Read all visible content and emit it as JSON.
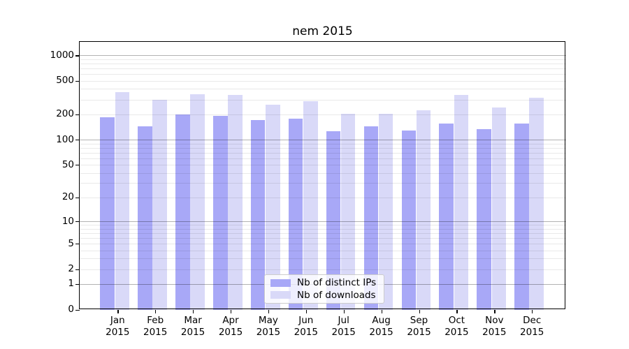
{
  "title": "nem 2015",
  "y_axis": {
    "tick_values": [
      0,
      1,
      2,
      5,
      10,
      20,
      50,
      100,
      200,
      500,
      1000
    ]
  },
  "x_axis": {
    "months": [
      "Jan",
      "Feb",
      "Mar",
      "Apr",
      "May",
      "Jun",
      "Jul",
      "Aug",
      "Sep",
      "Oct",
      "Nov",
      "Dec"
    ],
    "year": "2015"
  },
  "legend": {
    "items": [
      {
        "label": "Nb of distinct IPs",
        "series_key": "ips"
      },
      {
        "label": "Nb of downloads",
        "series_key": "downloads"
      }
    ]
  },
  "colors": {
    "ips_bar": "#a8a8f7",
    "downloads_bar": "#d9d9f8",
    "grid_major": "rgba(0,0,0,0.30)",
    "grid_minor": "rgba(0,0,0,0.085)",
    "axis_line": "#000000",
    "legend_border": "#cccccc"
  },
  "chart_data": {
    "type": "bar",
    "title": "nem 2015",
    "categories": [
      "Jan 2015",
      "Feb 2015",
      "Mar 2015",
      "Apr 2015",
      "May 2015",
      "Jun 2015",
      "Jul 2015",
      "Aug 2015",
      "Sep 2015",
      "Oct 2015",
      "Nov 2015",
      "Dec 2015"
    ],
    "series": [
      {
        "name": "Nb of distinct IPs",
        "values": [
          184,
          143,
          200,
          193,
          170,
          177,
          126,
          145,
          129,
          157,
          134,
          155
        ]
      },
      {
        "name": "Nb of downloads",
        "values": [
          369,
          300,
          348,
          341,
          261,
          289,
          203,
          202,
          225,
          340,
          240,
          313
        ]
      }
    ],
    "xlabel": "",
    "ylabel": "",
    "yscale": "log10(1+v)",
    "y_ticks": [
      0,
      1,
      2,
      5,
      10,
      20,
      50,
      100,
      200,
      500,
      1000
    ],
    "ylim": [
      0,
      1440
    ],
    "grid": "horizontal major (1,10,100,1000) + minor log decades, drawn above bars",
    "legend_position": "lower center"
  }
}
